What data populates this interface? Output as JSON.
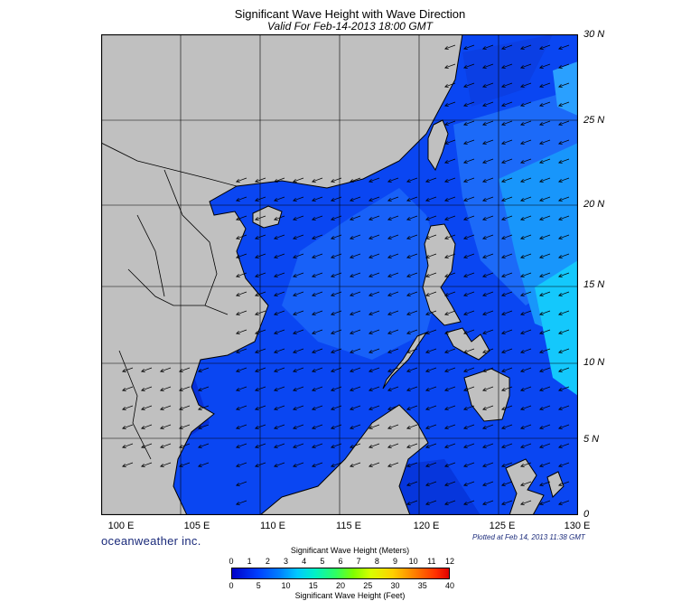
{
  "header": {
    "title": "Significant Wave Height with Wave Direction",
    "subtitle": "Valid For Feb-14-2013 18:00 GMT"
  },
  "map": {
    "lat_labels": [
      "30 N",
      "25 N",
      "20 N",
      "15 N",
      "10 N",
      "5 N",
      "0"
    ],
    "lon_labels": [
      "100 E",
      "105 E",
      "110 E",
      "115 E",
      "120 E",
      "125 E",
      "130 E"
    ],
    "land_color": "#c0c0c0",
    "sea_deep_color": "#0030e6",
    "sea_mid_color": "#0a4ef6",
    "sea_high_color": "#00d8ff",
    "prevailing_wave_direction": "northeast-to-southwest"
  },
  "footer": {
    "brand": "oceanweather inc.",
    "plotted": "Plotted at Feb 14, 2013 11:38 GMT"
  },
  "colorbar": {
    "title_meters": "Significant Wave Height (Meters)",
    "title_feet": "Significant Wave Height (Feet)",
    "meter_ticks": [
      "0",
      "1",
      "2",
      "3",
      "4",
      "5",
      "6",
      "7",
      "8",
      "9",
      "10",
      "11",
      "12"
    ],
    "feet_ticks": [
      "0",
      "5",
      "10",
      "15",
      "20",
      "25",
      "30",
      "35",
      "40"
    ]
  }
}
